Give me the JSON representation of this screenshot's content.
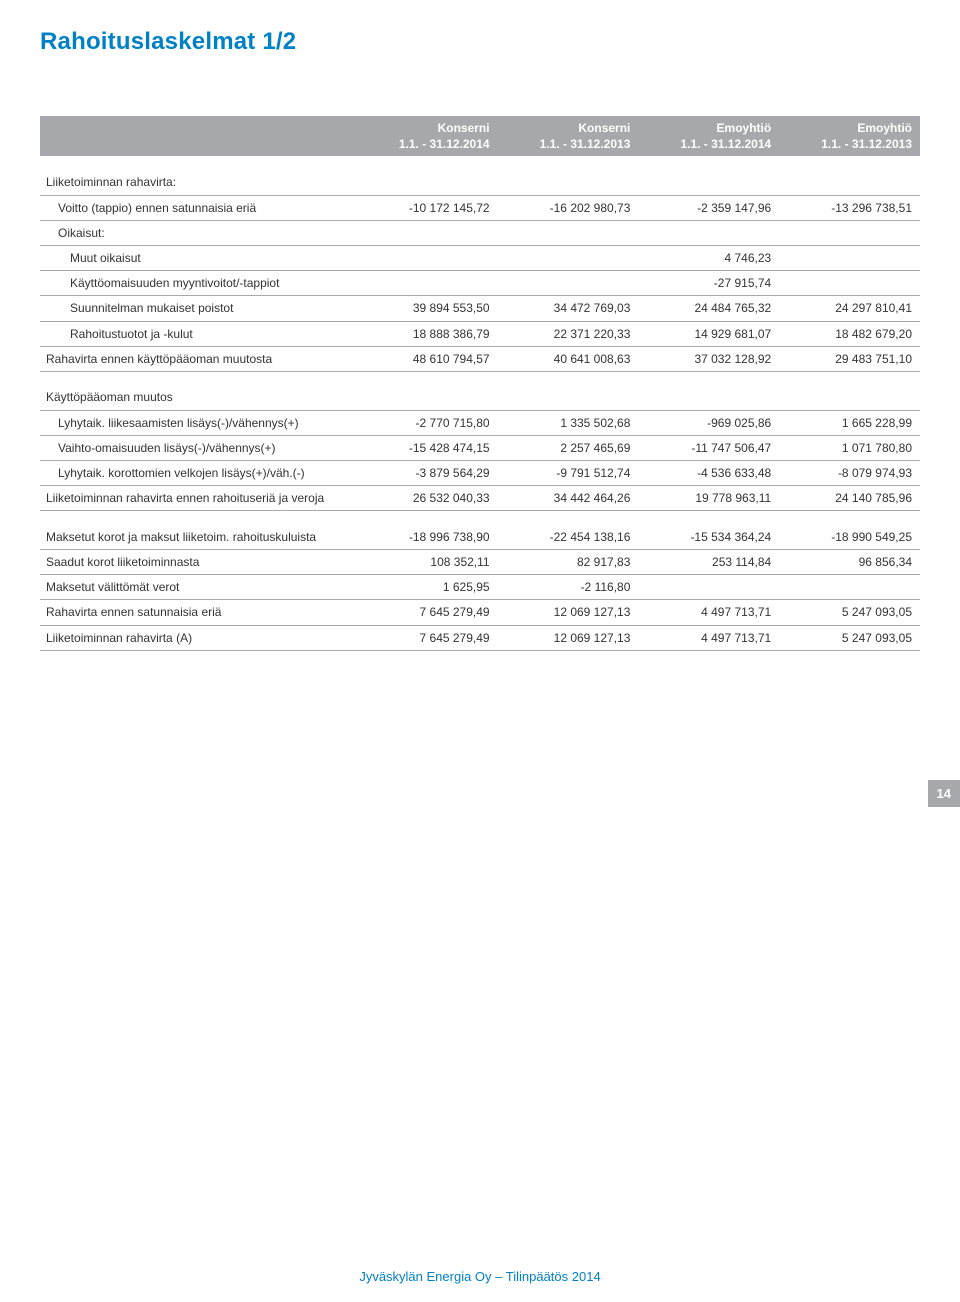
{
  "page": {
    "title": "Rahoituslaskelmat 1/2",
    "number": "14",
    "footer": "Jyväskylän Energia Oy – Tilinpäätös 2014"
  },
  "colors": {
    "accent": "#0081c6",
    "header_bg": "#a6a8ab",
    "header_text": "#ffffff",
    "border": "#a6a8ab",
    "text": "#333333",
    "background": "#ffffff"
  },
  "columns": [
    {
      "group": "Konserni",
      "period": "1.1. - 31.12.2014"
    },
    {
      "group": "Konserni",
      "period": "1.1. - 31.12.2013"
    },
    {
      "group": "Emoyhtiö",
      "period": "1.1. - 31.12.2014"
    },
    {
      "group": "Emoyhtiö",
      "period": "1.1. - 31.12.2013"
    }
  ],
  "sections": {
    "s1": {
      "r0": {
        "label": "Liiketoiminnan rahavirta:"
      },
      "r1": {
        "label": "Voitto (tappio) ennen satunnaisia eriä",
        "v": [
          "-10 172 145,72",
          "-16 202 980,73",
          "-2 359 147,96",
          "-13 296 738,51"
        ]
      },
      "r2": {
        "label": "Oikaisut:"
      },
      "r3": {
        "label": "Muut oikaisut",
        "v": [
          "",
          "",
          "4 746,23",
          ""
        ]
      },
      "r4": {
        "label": "Käyttöomaisuuden myyntivoitot/-tappiot",
        "v": [
          "",
          "",
          "-27 915,74",
          ""
        ]
      },
      "r5": {
        "label": "Suunnitelman mukaiset poistot",
        "v": [
          "39 894 553,50",
          "34 472 769,03",
          "24 484 765,32",
          "24 297 810,41"
        ]
      },
      "r6": {
        "label": "Rahoitustuotot ja -kulut",
        "v": [
          "18 888 386,79",
          "22 371 220,33",
          "14 929 681,07",
          "18 482 679,20"
        ]
      },
      "r7": {
        "label": "Rahavirta ennen käyttöpääoman muutosta",
        "v": [
          "48 610 794,57",
          "40 641 008,63",
          "37 032 128,92",
          "29 483 751,10"
        ]
      }
    },
    "s2": {
      "r0": {
        "label": "Käyttöpääoman muutos"
      },
      "r1": {
        "label": "Lyhytaik. liikesaamisten lisäys(-)/vähennys(+)",
        "v": [
          "-2 770 715,80",
          "1 335 502,68",
          "-969 025,86",
          "1 665 228,99"
        ]
      },
      "r2": {
        "label": "Vaihto-omaisuuden lisäys(-)/vähennys(+)",
        "v": [
          "-15 428 474,15",
          "2 257 465,69",
          "-11 747 506,47",
          "1 071 780,80"
        ]
      },
      "r3": {
        "label": "Lyhytaik. korottomien velkojen lisäys(+)/väh.(-)",
        "v": [
          "-3 879 564,29",
          "-9 791 512,74",
          "-4 536 633,48",
          "-8 079 974,93"
        ]
      },
      "r4": {
        "label": "Liiketoiminnan rahavirta ennen rahoituseriä ja veroja",
        "v": [
          "26 532 040,33",
          "34 442 464,26",
          "19 778 963,11",
          "24 140 785,96"
        ]
      }
    },
    "s3": {
      "r0": {
        "label": "Maksetut korot ja maksut liiketoim. rahoituskuluista",
        "v": [
          "-18 996 738,90",
          "-22 454 138,16",
          "-15 534 364,24",
          "-18 990 549,25"
        ]
      },
      "r1": {
        "label": "Saadut korot liiketoiminnasta",
        "v": [
          "108 352,11",
          "82 917,83",
          "253 114,84",
          "96 856,34"
        ]
      },
      "r2": {
        "label": "Maksetut välittömät verot",
        "v": [
          "1 625,95",
          "-2 116,80",
          "",
          ""
        ]
      },
      "r3": {
        "label": "Rahavirta ennen satunnaisia eriä",
        "v": [
          "7 645 279,49",
          "12 069 127,13",
          "4 497 713,71",
          "5 247 093,05"
        ]
      },
      "r4": {
        "label": "Liiketoiminnan rahavirta (A)",
        "v": [
          "7 645 279,49",
          "12 069 127,13",
          "4 497 713,71",
          "5 247 093,05"
        ]
      }
    }
  }
}
